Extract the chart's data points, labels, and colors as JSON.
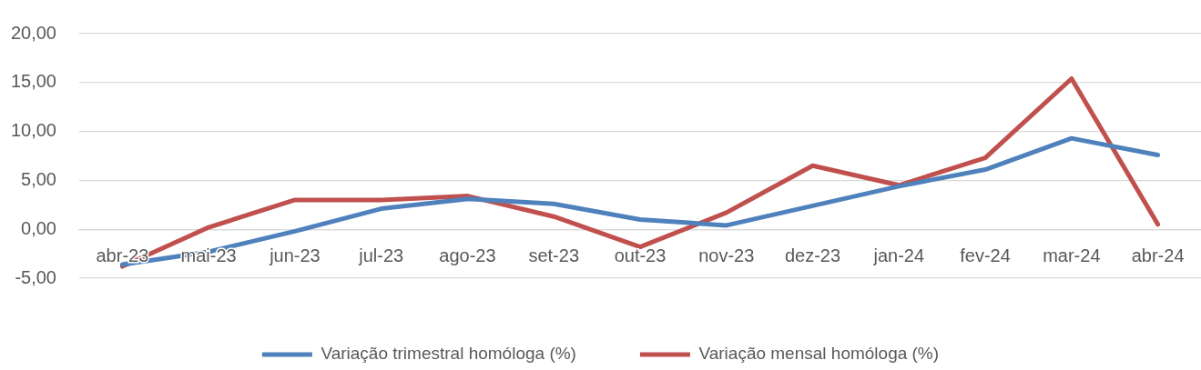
{
  "chart_data": {
    "type": "line",
    "categories": [
      "abr-23",
      "mai-23",
      "jun-23",
      "jul-23",
      "ago-23",
      "set-23",
      "out-23",
      "nov-23",
      "dez-23",
      "jan-24",
      "fev-24",
      "mar-24",
      "abr-24"
    ],
    "series": [
      {
        "name": "Variação trimestral homóloga (%)",
        "color": "#4f81bd",
        "values": [
          -3.6,
          -2.3,
          -0.2,
          2.1,
          3.1,
          2.6,
          1.0,
          0.4,
          2.4,
          4.4,
          6.1,
          9.3,
          7.6
        ]
      },
      {
        "name": "Variação mensal homóloga (%)",
        "color": "#c0504d",
        "values": [
          -3.8,
          0.2,
          3.0,
          3.0,
          3.4,
          1.3,
          -1.8,
          1.7,
          6.5,
          4.5,
          7.3,
          15.4,
          0.5
        ]
      }
    ],
    "ylim": [
      -5,
      20
    ],
    "yticks": [
      {
        "value": -5,
        "label": "-5,00"
      },
      {
        "value": 0,
        "label": "0,00"
      },
      {
        "value": 5,
        "label": "5,00"
      },
      {
        "value": 10,
        "label": "10,00"
      },
      {
        "value": 15,
        "label": "15,00"
      },
      {
        "value": 20,
        "label": "20,00"
      }
    ],
    "grid": "y",
    "legend": "bottom"
  }
}
